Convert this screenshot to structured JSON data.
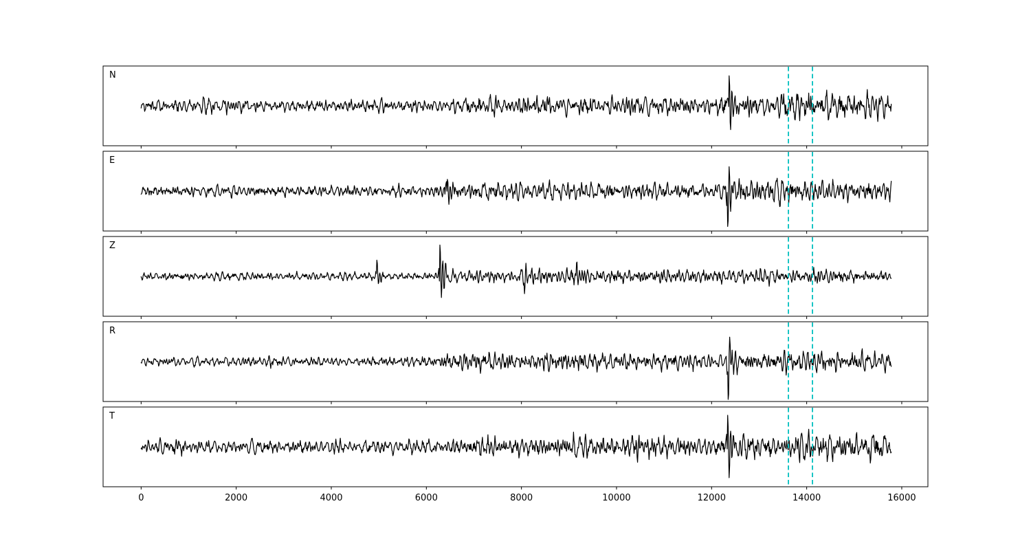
{
  "figure": {
    "background": "#ffffff",
    "border_color": "#000000"
  },
  "chart_data": {
    "type": "line",
    "kind": "seismogram-multipanel",
    "title": "",
    "xlabel": "",
    "ylabel": "",
    "x_axis_range": [
      -800,
      16550
    ],
    "x_data_range": [
      0,
      15780
    ],
    "x_ticks": [
      0,
      2000,
      4000,
      6000,
      8000,
      10000,
      12000,
      14000,
      16000
    ],
    "x_tick_labels": [
      "0",
      "2000",
      "4000",
      "6000",
      "8000",
      "10000",
      "12000",
      "14000",
      "16000"
    ],
    "grid": false,
    "legend": "none",
    "trace_color": "#000000",
    "vlines": {
      "positions": [
        13616,
        14122
      ],
      "color": "#00bfbf",
      "style": "dashed"
    },
    "panels": [
      {
        "label": "N",
        "envelope": [
          [
            0,
            0.2
          ],
          [
            1500,
            0.24
          ],
          [
            3000,
            0.2
          ],
          [
            5000,
            0.21
          ],
          [
            6500,
            0.22
          ],
          [
            6900,
            0.32
          ],
          [
            7400,
            0.38
          ],
          [
            7800,
            0.3
          ],
          [
            8300,
            0.38
          ],
          [
            8800,
            0.3
          ],
          [
            9300,
            0.35
          ],
          [
            10000,
            0.3
          ],
          [
            10700,
            0.34
          ],
          [
            11500,
            0.3
          ],
          [
            12100,
            0.3
          ],
          [
            12500,
            0.4
          ],
          [
            13000,
            0.42
          ],
          [
            13700,
            0.5
          ],
          [
            14300,
            0.44
          ],
          [
            14800,
            0.52
          ],
          [
            15300,
            0.42
          ],
          [
            15780,
            0.38
          ]
        ],
        "spikes": [
          {
            "x": 12355,
            "amp": 1.3,
            "sign": 1
          }
        ]
      },
      {
        "label": "E",
        "envelope": [
          [
            0,
            0.17
          ],
          [
            2000,
            0.2
          ],
          [
            4000,
            0.18
          ],
          [
            6100,
            0.19
          ],
          [
            6400,
            0.34
          ],
          [
            6700,
            0.28
          ],
          [
            7300,
            0.33
          ],
          [
            8000,
            0.28
          ],
          [
            8700,
            0.34
          ],
          [
            9400,
            0.3
          ],
          [
            10200,
            0.32
          ],
          [
            11000,
            0.28
          ],
          [
            11800,
            0.3
          ],
          [
            12200,
            0.28
          ],
          [
            12600,
            0.44
          ],
          [
            13200,
            0.36
          ],
          [
            14000,
            0.38
          ],
          [
            14800,
            0.34
          ],
          [
            15780,
            0.33
          ]
        ],
        "spikes": [
          {
            "x": 6430,
            "amp": 0.5,
            "sign": 1
          },
          {
            "x": 12330,
            "amp": 1.35,
            "sign": -1
          }
        ]
      },
      {
        "label": "Z",
        "envelope": [
          [
            0,
            0.12
          ],
          [
            2000,
            0.14
          ],
          [
            4000,
            0.12
          ],
          [
            6100,
            0.13
          ],
          [
            6500,
            0.26
          ],
          [
            7200,
            0.24
          ],
          [
            8000,
            0.3
          ],
          [
            8600,
            0.24
          ],
          [
            9200,
            0.3
          ],
          [
            10000,
            0.24
          ],
          [
            11000,
            0.26
          ],
          [
            12000,
            0.24
          ],
          [
            13000,
            0.26
          ],
          [
            14000,
            0.24
          ],
          [
            15000,
            0.23
          ],
          [
            15780,
            0.2
          ]
        ],
        "spikes": [
          {
            "x": 4950,
            "amp": 0.45,
            "sign": 1
          },
          {
            "x": 6270,
            "amp": 1.3,
            "sign": 1
          },
          {
            "x": 8050,
            "amp": 0.55,
            "sign": -1
          },
          {
            "x": 9150,
            "amp": 0.5,
            "sign": 1
          }
        ]
      },
      {
        "label": "R",
        "envelope": [
          [
            0,
            0.15
          ],
          [
            2000,
            0.17
          ],
          [
            4000,
            0.15
          ],
          [
            6200,
            0.16
          ],
          [
            6500,
            0.3
          ],
          [
            7200,
            0.33
          ],
          [
            8000,
            0.28
          ],
          [
            8800,
            0.34
          ],
          [
            9600,
            0.3
          ],
          [
            10500,
            0.3
          ],
          [
            11300,
            0.28
          ],
          [
            12100,
            0.28
          ],
          [
            12600,
            0.42
          ],
          [
            13300,
            0.4
          ],
          [
            14100,
            0.42
          ],
          [
            14900,
            0.36
          ],
          [
            15780,
            0.34
          ]
        ],
        "spikes": [
          {
            "x": 12340,
            "amp": 1.35,
            "sign": -1
          }
        ]
      },
      {
        "label": "T",
        "envelope": [
          [
            0,
            0.22
          ],
          [
            1500,
            0.26
          ],
          [
            3000,
            0.22
          ],
          [
            5000,
            0.23
          ],
          [
            6800,
            0.24
          ],
          [
            7200,
            0.38
          ],
          [
            7700,
            0.32
          ],
          [
            8300,
            0.36
          ],
          [
            9000,
            0.4
          ],
          [
            9700,
            0.33
          ],
          [
            10400,
            0.38
          ],
          [
            11200,
            0.33
          ],
          [
            12100,
            0.34
          ],
          [
            12500,
            0.42
          ],
          [
            13200,
            0.44
          ],
          [
            13900,
            0.5
          ],
          [
            14600,
            0.46
          ],
          [
            15300,
            0.48
          ],
          [
            15780,
            0.4
          ]
        ],
        "spikes": [
          {
            "x": 10400,
            "amp": 0.45,
            "sign": 1
          },
          {
            "x": 12330,
            "amp": 1.15,
            "sign": 1
          }
        ]
      }
    ]
  }
}
